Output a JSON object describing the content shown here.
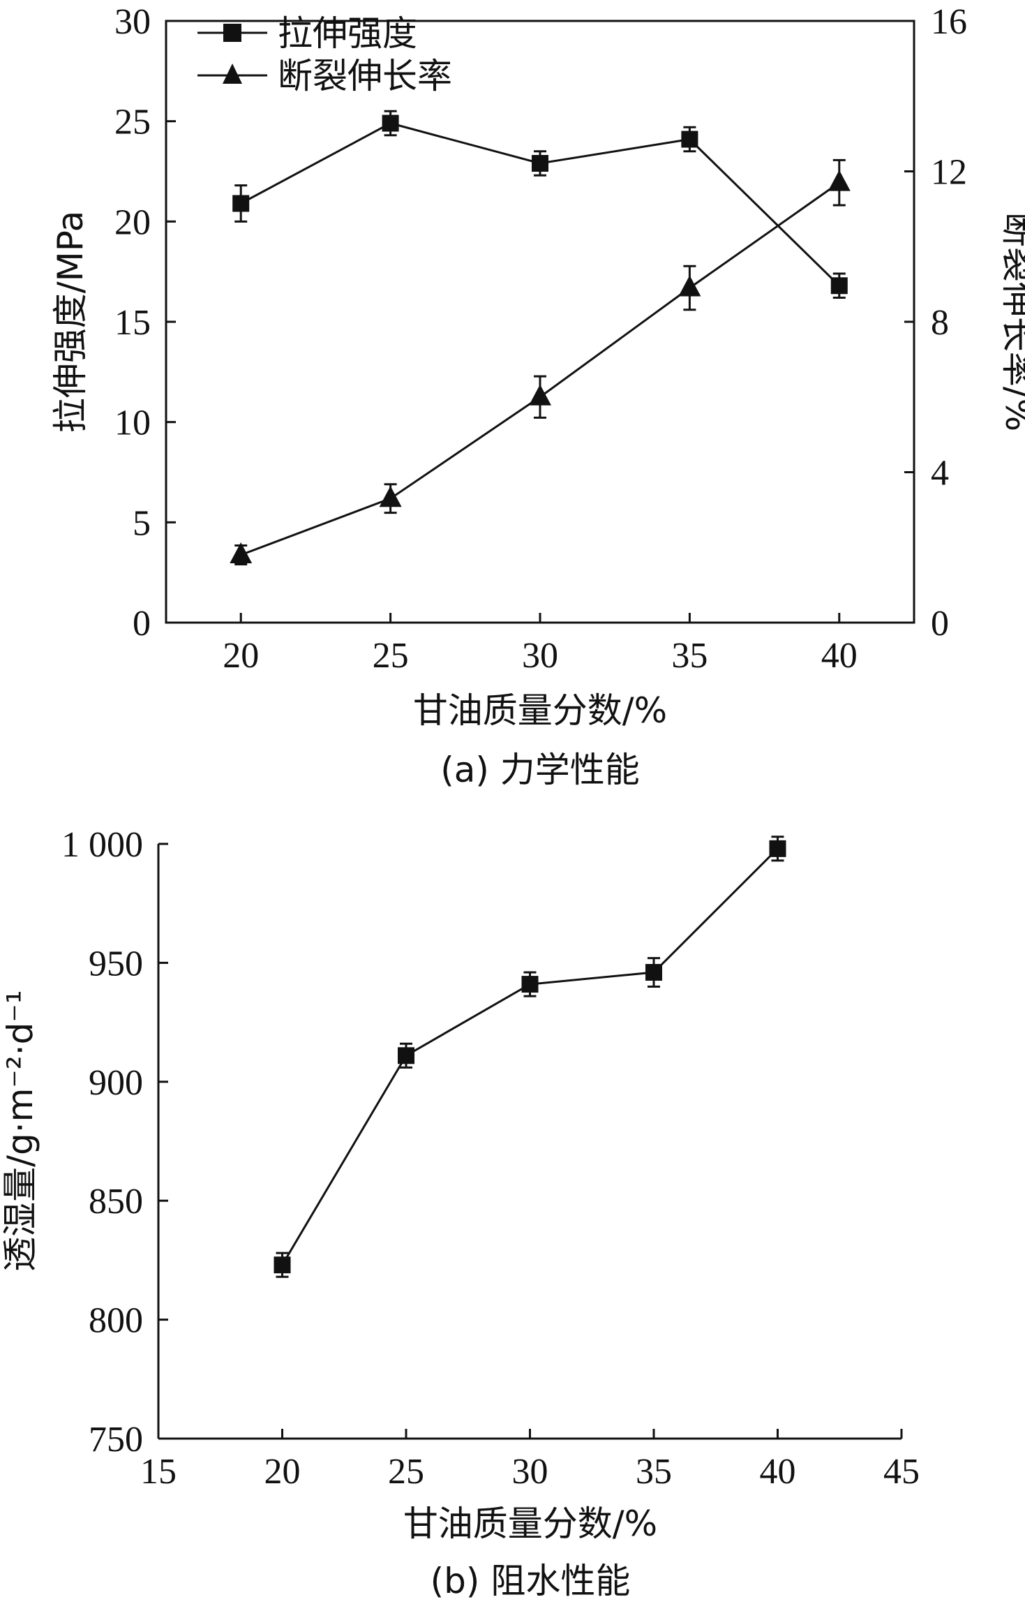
{
  "chart_data": [
    {
      "type": "line",
      "caption": "(a) 力学性能",
      "xlabel": "甘油质量分数/%",
      "ylabel": "拉伸强度/MPa",
      "y2label": "断裂伸长率/%",
      "xlim": [
        17.5,
        42.5
      ],
      "ylim": [
        0,
        30
      ],
      "y2lim": [
        0,
        16
      ],
      "x_ticks": [
        20,
        25,
        30,
        35,
        40
      ],
      "x_tick_labels": [
        "20",
        "25",
        "30",
        "35",
        "40"
      ],
      "y_ticks": [
        0,
        5,
        10,
        15,
        20,
        25,
        30
      ],
      "y_tick_labels": [
        "0",
        "5",
        "10",
        "15",
        "20",
        "25",
        "30"
      ],
      "y2_ticks": [
        0,
        4,
        8,
        12,
        16
      ],
      "y2_tick_labels": [
        "0",
        "4",
        "8",
        "12",
        "16"
      ],
      "legend_position": "top-left",
      "grid": false,
      "series": [
        {
          "name": "拉伸强度",
          "marker": "square",
          "axis": "left",
          "x": [
            20,
            25,
            30,
            35,
            40
          ],
          "values": [
            20.9,
            24.9,
            22.9,
            24.1,
            16.8
          ],
          "errors": [
            0.9,
            0.6,
            0.6,
            0.6,
            0.6
          ]
        },
        {
          "name": "断裂伸长率",
          "marker": "triangle",
          "axis": "right",
          "x": [
            20,
            25,
            30,
            35,
            40
          ],
          "values": [
            1.8,
            3.3,
            6.0,
            8.9,
            11.7
          ],
          "errors": [
            0.25,
            0.38,
            0.55,
            0.58,
            0.6
          ]
        }
      ]
    },
    {
      "type": "line",
      "caption": "(b) 阻水性能",
      "xlabel": "甘油质量分数/%",
      "ylabel": "透湿量/g·m⁻²·d⁻¹",
      "xlim": [
        15,
        45
      ],
      "ylim": [
        750,
        1000
      ],
      "x_ticks": [
        15,
        20,
        25,
        30,
        35,
        40,
        45
      ],
      "x_tick_labels": [
        "15",
        "20",
        "25",
        "30",
        "35",
        "40",
        "45"
      ],
      "y_ticks": [
        750,
        800,
        850,
        900,
        950,
        1000
      ],
      "y_tick_labels": [
        "750",
        "800",
        "850",
        "900",
        "950",
        "1 000"
      ],
      "grid": false,
      "series": [
        {
          "marker": "square",
          "x": [
            20,
            25,
            30,
            35,
            40
          ],
          "values": [
            823,
            911,
            941,
            946,
            998
          ],
          "errors": [
            5,
            5,
            5,
            6,
            5
          ]
        }
      ]
    }
  ]
}
